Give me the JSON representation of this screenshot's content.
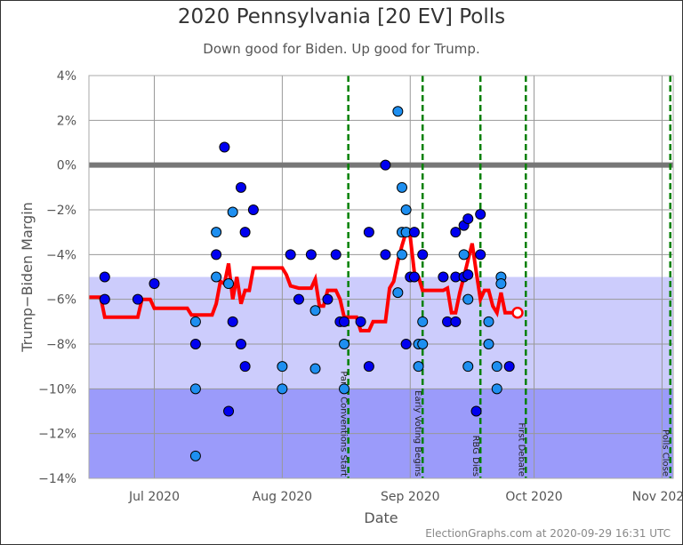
{
  "chart_data": {
    "type": "scatter",
    "title": "2020 Pennsylvania [20 EV] Polls",
    "subtitle": "Down good for Biden. Up good for Trump.",
    "xlabel": "Date",
    "ylabel": "Trump−Biden Margin",
    "footer": "ElectionGraphs.com at 2020-09-29 16:31 UTC",
    "xlim": [
      "2020-06-15T16:00",
      "2020-11-04T05:00"
    ],
    "ylim": [
      -14,
      4
    ],
    "grid": true,
    "y_ticks": [
      {
        "value": 4,
        "label": "4%"
      },
      {
        "value": 2,
        "label": "2%"
      },
      {
        "value": 0,
        "label": "0%"
      },
      {
        "value": -2,
        "label": "−2%"
      },
      {
        "value": -4,
        "label": "−4%"
      },
      {
        "value": -6,
        "label": "−6%"
      },
      {
        "value": -8,
        "label": "−8%"
      },
      {
        "value": -10,
        "label": "−10%"
      },
      {
        "value": -12,
        "label": "−12%"
      },
      {
        "value": -14,
        "label": "−14%"
      }
    ],
    "x_ticks": [
      {
        "date": "2020-07-01",
        "label": "Jul 2020"
      },
      {
        "date": "2020-08-01",
        "label": "Aug 2020"
      },
      {
        "date": "2020-09-01",
        "label": "Sep 2020"
      },
      {
        "date": "2020-10-01",
        "label": "Oct 2020"
      },
      {
        "date": "2020-11-01",
        "label": "Nov 2020"
      }
    ],
    "bands": [
      {
        "from": -5,
        "to": -10,
        "color": "#ccccfc"
      },
      {
        "from": -10,
        "to": -14,
        "color": "#9b9bfa"
      }
    ],
    "colors": {
      "poll_dark": "#0000f0",
      "poll_light": "#1e8ff0",
      "average": "#ff0000",
      "event": "#008000",
      "zero": "#777777"
    },
    "events": [
      {
        "date": "2020-08-17",
        "label": "Party Conventions Start"
      },
      {
        "date": "2020-09-04",
        "label": "Early Voting Begins"
      },
      {
        "date": "2020-09-18",
        "label": "RBG Dies"
      },
      {
        "date": "2020-09-29",
        "label": "First Debate"
      },
      {
        "date": "2020-11-03",
        "label": "Polls Close"
      }
    ],
    "polls": [
      [
        "2020-06-19",
        -5,
        "d"
      ],
      [
        "2020-06-19",
        -6,
        "d"
      ],
      [
        "2020-06-27",
        -6,
        "d"
      ],
      [
        "2020-07-01",
        -5.3,
        "d"
      ],
      [
        "2020-07-11",
        -7,
        "l"
      ],
      [
        "2020-07-11",
        -8,
        "d"
      ],
      [
        "2020-07-11",
        -10,
        "l"
      ],
      [
        "2020-07-11",
        -13,
        "l"
      ],
      [
        "2020-07-16",
        -3,
        "l"
      ],
      [
        "2020-07-16",
        -4,
        "d"
      ],
      [
        "2020-07-16",
        -5,
        "l"
      ],
      [
        "2020-07-18",
        0.8,
        "d"
      ],
      [
        "2020-07-20",
        -2.1,
        "l"
      ],
      [
        "2020-07-19",
        -5.3,
        "l"
      ],
      [
        "2020-07-19",
        -11,
        "d"
      ],
      [
        "2020-07-20",
        -7,
        "d"
      ],
      [
        "2020-07-22",
        -8,
        "d"
      ],
      [
        "2020-07-22",
        -1,
        "d"
      ],
      [
        "2020-07-23",
        -3,
        "d"
      ],
      [
        "2020-07-23",
        -9,
        "d"
      ],
      [
        "2020-07-25",
        -2,
        "d"
      ],
      [
        "2020-08-01",
        -9,
        "l"
      ],
      [
        "2020-08-01",
        -10,
        "l"
      ],
      [
        "2020-08-03",
        -4,
        "d"
      ],
      [
        "2020-08-05",
        -6,
        "d"
      ],
      [
        "2020-08-08",
        -4,
        "d"
      ],
      [
        "2020-08-09",
        -6.5,
        "l"
      ],
      [
        "2020-08-09",
        -9.1,
        "l"
      ],
      [
        "2020-08-12",
        -6,
        "d"
      ],
      [
        "2020-08-14",
        -4,
        "d"
      ],
      [
        "2020-08-15",
        -7,
        "d"
      ],
      [
        "2020-08-16",
        -7,
        "d"
      ],
      [
        "2020-08-16",
        -8,
        "l"
      ],
      [
        "2020-08-16",
        -10,
        "l"
      ],
      [
        "2020-08-20",
        -7,
        "d"
      ],
      [
        "2020-08-22",
        -3,
        "d"
      ],
      [
        "2020-08-22",
        -9,
        "d"
      ],
      [
        "2020-08-26",
        0,
        "d"
      ],
      [
        "2020-08-26",
        -4,
        "d"
      ],
      [
        "2020-08-29",
        2.4,
        "l"
      ],
      [
        "2020-08-29",
        -5.7,
        "l"
      ],
      [
        "2020-08-30",
        -1,
        "l"
      ],
      [
        "2020-08-31",
        -2,
        "l"
      ],
      [
        "2020-08-30",
        -3,
        "l"
      ],
      [
        "2020-08-31",
        -3,
        "l"
      ],
      [
        "2020-08-30",
        -4,
        "l"
      ],
      [
        "2020-08-31",
        -8,
        "d"
      ],
      [
        "2020-09-01",
        -5,
        "d"
      ],
      [
        "2020-09-02",
        -5,
        "d"
      ],
      [
        "2020-09-02",
        -3,
        "d"
      ],
      [
        "2020-09-04",
        -4,
        "d"
      ],
      [
        "2020-09-04",
        -7,
        "l"
      ],
      [
        "2020-09-03",
        -8,
        "l"
      ],
      [
        "2020-09-04",
        -8,
        "l"
      ],
      [
        "2020-09-03",
        -9,
        "l"
      ],
      [
        "2020-09-09",
        -5,
        "d"
      ],
      [
        "2020-09-10",
        -7,
        "d"
      ],
      [
        "2020-09-12",
        -7,
        "d"
      ],
      [
        "2020-09-12",
        -5,
        "d"
      ],
      [
        "2020-09-12",
        -3,
        "d"
      ],
      [
        "2020-09-14",
        -2.7,
        "d"
      ],
      [
        "2020-09-15",
        -2.4,
        "d"
      ],
      [
        "2020-09-14",
        -4,
        "l"
      ],
      [
        "2020-09-14",
        -5,
        "d"
      ],
      [
        "2020-09-15",
        -4.9,
        "d"
      ],
      [
        "2020-09-15",
        -6,
        "l"
      ],
      [
        "2020-09-15",
        -9,
        "l"
      ],
      [
        "2020-09-17",
        -11,
        "d"
      ],
      [
        "2020-09-18",
        -4,
        "d"
      ],
      [
        "2020-09-18",
        -2.2,
        "d"
      ],
      [
        "2020-09-20",
        -7,
        "l"
      ],
      [
        "2020-09-20",
        -8,
        "l"
      ],
      [
        "2020-09-22",
        -9,
        "l"
      ],
      [
        "2020-09-22",
        -10,
        "l"
      ],
      [
        "2020-09-25",
        -9,
        "d"
      ],
      [
        "2020-09-23",
        -5,
        "l"
      ],
      [
        "2020-09-23",
        -5.3,
        "l"
      ]
    ],
    "average": [
      [
        "2020-06-15T16:00",
        -5.9
      ],
      [
        "2020-06-18",
        -5.9
      ],
      [
        "2020-06-19",
        -6.8
      ],
      [
        "2020-06-27",
        -6.8
      ],
      [
        "2020-06-28",
        -6.0
      ],
      [
        "2020-06-30",
        -6.0
      ],
      [
        "2020-07-01",
        -6.4
      ],
      [
        "2020-07-09",
        -6.4
      ],
      [
        "2020-07-10",
        -6.7
      ],
      [
        "2020-07-15",
        -6.7
      ],
      [
        "2020-07-16",
        -6.2
      ],
      [
        "2020-07-17",
        -5.2
      ],
      [
        "2020-07-18",
        -5.3
      ],
      [
        "2020-07-19",
        -4.4
      ],
      [
        "2020-07-20",
        -6.0
      ],
      [
        "2020-07-21",
        -5.0
      ],
      [
        "2020-07-22",
        -6.2
      ],
      [
        "2020-07-23",
        -5.6
      ],
      [
        "2020-07-24",
        -5.6
      ],
      [
        "2020-07-25",
        -4.6
      ],
      [
        "2020-08-01",
        -4.6
      ],
      [
        "2020-08-02",
        -4.9
      ],
      [
        "2020-08-03",
        -5.4
      ],
      [
        "2020-08-05",
        -5.5
      ],
      [
        "2020-08-08",
        -5.5
      ],
      [
        "2020-08-09",
        -5.1
      ],
      [
        "2020-08-10",
        -6.3
      ],
      [
        "2020-08-11",
        -6.3
      ],
      [
        "2020-08-12",
        -5.6
      ],
      [
        "2020-08-14",
        -5.6
      ],
      [
        "2020-08-15",
        -6.0
      ],
      [
        "2020-08-16",
        -6.8
      ],
      [
        "2020-08-19",
        -6.8
      ],
      [
        "2020-08-20",
        -7.4
      ],
      [
        "2020-08-22",
        -7.4
      ],
      [
        "2020-08-23",
        -7.0
      ],
      [
        "2020-08-26",
        -7.0
      ],
      [
        "2020-08-27",
        -5.5
      ],
      [
        "2020-08-28",
        -5.2
      ],
      [
        "2020-08-29",
        -4.3
      ],
      [
        "2020-08-30",
        -3.6
      ],
      [
        "2020-08-31",
        -3.0
      ],
      [
        "2020-09-01",
        -3.2
      ],
      [
        "2020-09-02",
        -4.8
      ],
      [
        "2020-09-03",
        -5.0
      ],
      [
        "2020-09-04",
        -5.6
      ],
      [
        "2020-09-09",
        -5.6
      ],
      [
        "2020-09-10",
        -5.5
      ],
      [
        "2020-09-11",
        -6.6
      ],
      [
        "2020-09-12",
        -6.6
      ],
      [
        "2020-09-13",
        -5.7
      ],
      [
        "2020-09-14",
        -5.0
      ],
      [
        "2020-09-16",
        -3.5
      ],
      [
        "2020-09-17",
        -4.8
      ],
      [
        "2020-09-18",
        -6.0
      ],
      [
        "2020-09-19",
        -5.6
      ],
      [
        "2020-09-20",
        -5.6
      ],
      [
        "2020-09-21",
        -6.3
      ],
      [
        "2020-09-22",
        -6.6
      ],
      [
        "2020-09-23",
        -5.7
      ],
      [
        "2020-09-24",
        -6.6
      ],
      [
        "2020-09-27",
        -6.6
      ]
    ]
  }
}
